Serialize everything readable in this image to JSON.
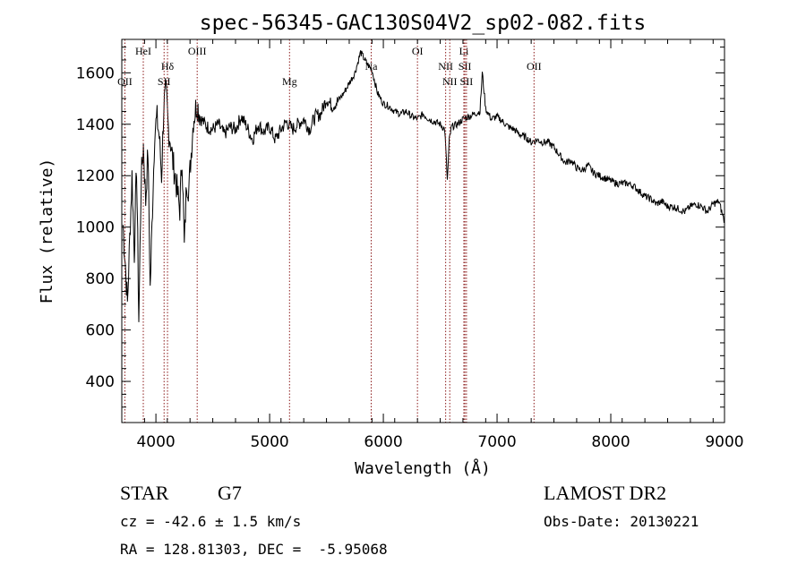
{
  "chart_data": {
    "type": "line",
    "title": "spec-56345-GAC130S04V2_sp02-082.fits",
    "xlabel": "Wavelength (Å)",
    "ylabel": "Flux (relative)",
    "xlim": [
      3700,
      9000
    ],
    "ylim": [
      240,
      1730
    ],
    "xticks": [
      4000,
      5000,
      6000,
      7000,
      8000,
      9000
    ],
    "yticks": [
      400,
      600,
      800,
      1000,
      1200,
      1400,
      1600
    ],
    "grid": false,
    "line_color": "#000000",
    "marker_color": "#8b1a1a",
    "series": [
      {
        "x": [
          3710,
          3730,
          3750,
          3770,
          3790,
          3810,
          3830,
          3850,
          3870,
          3890,
          3910,
          3930,
          3950,
          3970,
          3990,
          4010,
          4030,
          4050,
          4070,
          4090,
          4110,
          4130,
          4150,
          4170,
          4190,
          4210,
          4230,
          4250,
          4270,
          4290,
          4310,
          4330,
          4360,
          4400,
          4450,
          4500,
          4550,
          4600,
          4650,
          4700,
          4750,
          4800,
          4850,
          4900,
          4950,
          5000,
          5050,
          5100,
          5150,
          5200,
          5250,
          5300,
          5350,
          5400,
          5450,
          5500,
          5550,
          5600,
          5650,
          5700,
          5750,
          5800,
          5850,
          5900,
          5950,
          6000,
          6050,
          6100,
          6150,
          6200,
          6250,
          6300,
          6350,
          6400,
          6450,
          6500,
          6540,
          6563,
          6580,
          6600,
          6650,
          6700,
          6750,
          6800,
          6850,
          6870,
          6900,
          6950,
          7000,
          7050,
          7100,
          7150,
          7200,
          7250,
          7300,
          7350,
          7400,
          7450,
          7500,
          7550,
          7600,
          7650,
          7700,
          7750,
          7800,
          7850,
          7900,
          7950,
          8000,
          8050,
          8100,
          8150,
          8200,
          8250,
          8300,
          8350,
          8400,
          8450,
          8500,
          8550,
          8600,
          8650,
          8700,
          8750,
          8800,
          8850,
          8900,
          8950,
          9000
        ],
        "y": [
          1010,
          870,
          700,
          960,
          1200,
          900,
          1240,
          640,
          1180,
          1320,
          1100,
          1300,
          760,
          1080,
          1380,
          1420,
          1350,
          1200,
          1480,
          1520,
          1380,
          1330,
          1250,
          1200,
          1130,
          1070,
          1280,
          920,
          1180,
          1150,
          1290,
          1420,
          1480,
          1420,
          1390,
          1380,
          1400,
          1360,
          1390,
          1380,
          1430,
          1390,
          1340,
          1400,
          1370,
          1390,
          1340,
          1380,
          1410,
          1380,
          1400,
          1420,
          1380,
          1430,
          1440,
          1500,
          1470,
          1490,
          1520,
          1560,
          1600,
          1680,
          1640,
          1610,
          1520,
          1480,
          1470,
          1450,
          1440,
          1450,
          1430,
          1420,
          1440,
          1420,
          1410,
          1400,
          1380,
          1180,
          1340,
          1390,
          1400,
          1420,
          1430,
          1440,
          1450,
          1600,
          1460,
          1420,
          1430,
          1410,
          1390,
          1380,
          1360,
          1350,
          1330,
          1340,
          1330,
          1330,
          1310,
          1280,
          1250,
          1260,
          1230,
          1220,
          1240,
          1210,
          1200,
          1190,
          1180,
          1170,
          1170,
          1170,
          1160,
          1140,
          1120,
          1110,
          1090,
          1100,
          1080,
          1080,
          1070,
          1060,
          1080,
          1090,
          1080,
          1060,
          1090,
          1100,
          1020
        ]
      }
    ],
    "markers": [
      {
        "label": "OII",
        "x": 3727,
        "row": 3
      },
      {
        "label": "HeI",
        "x": 3889,
        "row": 1
      },
      {
        "label": "Hδ",
        "x": 4102,
        "row": 2
      },
      {
        "label": "SII",
        "x": 4072,
        "row": 3
      },
      {
        "label": "OIII",
        "x": 4363,
        "row": 1
      },
      {
        "label": "Mg",
        "x": 5175,
        "row": 3
      },
      {
        "label": "Na",
        "x": 5893,
        "row": 2
      },
      {
        "label": "OI",
        "x": 6300,
        "row": 1
      },
      {
        "label": "NII",
        "x": 6548,
        "row": 2
      },
      {
        "label": "Li",
        "x": 6708,
        "row": 1
      },
      {
        "label": "SII",
        "x": 6717,
        "row": 2
      },
      {
        "label": "NII",
        "x": 6584,
        "row": 3
      },
      {
        "label": "SII",
        "x": 6731,
        "row": 3
      },
      {
        "label": "OII",
        "x": 7325,
        "row": 2
      }
    ]
  },
  "info": {
    "class_label": "STAR",
    "subclass_label": "G7",
    "cz_text": "cz = -42.6 ± 1.5 km/s",
    "coords_text": "RA = 128.81303, DEC =  -5.95068",
    "survey_label": "LAMOST DR2",
    "obs_date_text": "Obs-Date: 20130221"
  }
}
